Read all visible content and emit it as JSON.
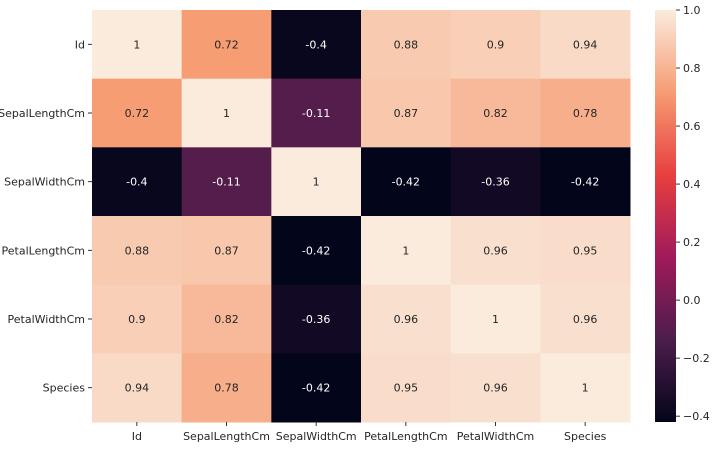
{
  "chart_data": {
    "type": "heatmap",
    "title": "",
    "xlabel": "",
    "ylabel": "",
    "row_labels": [
      "Id",
      "SepalLengthCm",
      "SepalWidthCm",
      "PetalLengthCm",
      "PetalWidthCm",
      "Species"
    ],
    "col_labels": [
      "Id",
      "SepalLengthCm",
      "SepalWidthCm",
      "PetalLengthCm",
      "PetalWidthCm",
      "Species"
    ],
    "values": [
      [
        1,
        0.72,
        -0.4,
        0.88,
        0.9,
        0.94
      ],
      [
        0.72,
        1,
        -0.11,
        0.87,
        0.82,
        0.78
      ],
      [
        -0.4,
        -0.11,
        1,
        -0.42,
        -0.36,
        -0.42
      ],
      [
        0.88,
        0.87,
        -0.42,
        1,
        0.96,
        0.95
      ],
      [
        0.9,
        0.82,
        -0.36,
        0.96,
        1,
        0.96
      ],
      [
        0.94,
        0.78,
        -0.42,
        0.95,
        0.96,
        1
      ]
    ],
    "annotations": [
      [
        "1",
        "0.72",
        "-0.4",
        "0.88",
        "0.9",
        "0.94"
      ],
      [
        "0.72",
        "1",
        "-0.11",
        "0.87",
        "0.82",
        "0.78"
      ],
      [
        "-0.4",
        "-0.11",
        "1",
        "-0.42",
        "-0.36",
        "-0.42"
      ],
      [
        "0.88",
        "0.87",
        "-0.42",
        "1",
        "0.96",
        "0.95"
      ],
      [
        "0.9",
        "0.82",
        "-0.36",
        "0.96",
        "1",
        "0.96"
      ],
      [
        "0.94",
        "0.78",
        "-0.42",
        "0.95",
        "0.96",
        "1"
      ]
    ],
    "colorbar": {
      "min": -0.42,
      "max": 1.0,
      "ticks": [
        1.0,
        0.8,
        0.6,
        0.4,
        0.2,
        0.0,
        -0.2,
        -0.4
      ],
      "tick_labels": [
        "1.0",
        "0.8",
        "0.6",
        "0.4",
        "0.2",
        "0.0",
        "−0.2",
        "−0.4"
      ]
    },
    "colormap": "rocket",
    "colormap_stops": [
      "#03051a",
      "#4c1d4b",
      "#a11a5b",
      "#e83f3f",
      "#f69c73",
      "#faebdd"
    ]
  }
}
